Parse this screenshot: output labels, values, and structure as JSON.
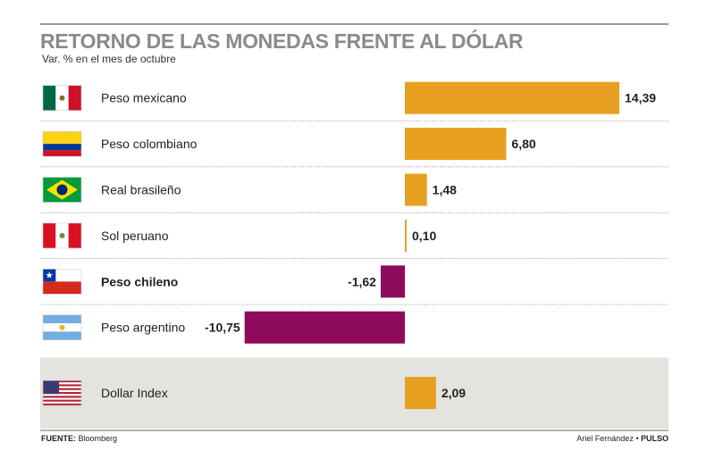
{
  "header": {
    "title": "RETORNO DE LAS MONEDAS FRENTE AL DÓLAR",
    "subtitle": "Var. % en el mes de octubre"
  },
  "footer": {
    "source_label": "FUENTE:",
    "source_name": "Bloomberg",
    "credit_author": "Ariel Fernández •",
    "credit_brand": "PULSO"
  },
  "colors": {
    "positive": "#E8A020",
    "negative": "#8E0A5C",
    "highlight_band": "#E3E3E0",
    "divider": "#9a9a9a"
  },
  "chart_data": {
    "type": "bar",
    "orientation": "horizontal",
    "title": "RETORNO DE LAS MONEDAS FRENTE AL DÓLAR",
    "subtitle": "Var. % en el mes de octubre",
    "categories": [
      "Peso mexicano",
      "Peso colombiano",
      "Real brasileño",
      "Sol peruano",
      "Peso chileno",
      "Peso argentino",
      "Dollar Index"
    ],
    "values": [
      14.39,
      6.8,
      1.48,
      0.1,
      -1.62,
      -10.75,
      2.09
    ],
    "value_labels": [
      "14,39",
      "6,80",
      "1,48",
      "0,10",
      "-1,62",
      "-10,75",
      "2,09"
    ],
    "flags": [
      "mexico-flag-icon",
      "colombia-flag-icon",
      "brazil-flag-icon",
      "peru-flag-icon",
      "chile-flag-icon",
      "argentina-flag-icon",
      "usa-flag-icon"
    ],
    "highlight": [
      "Peso chileno"
    ],
    "xlim": [
      -12,
      16
    ],
    "xlabel": "",
    "ylabel": "",
    "grid": false,
    "legend": "none"
  }
}
